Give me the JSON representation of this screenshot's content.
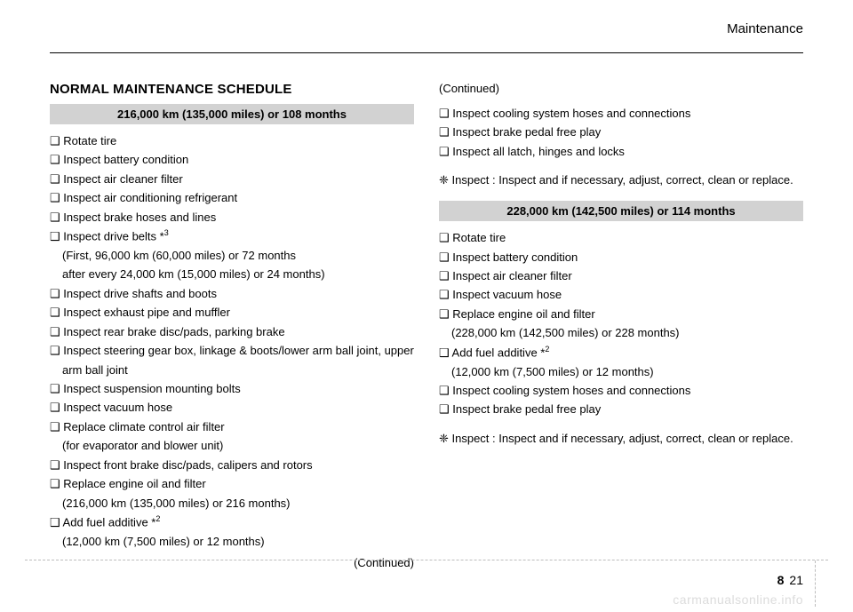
{
  "section_label": "Maintenance",
  "page_title": "NORMAL MAINTENANCE SCHEDULE",
  "continued_text": "(Continued)",
  "inspect_note": "❈ Inspect : Inspect and if necessary, adjust, correct, clean or replace.",
  "page_number_chapter": "8",
  "page_number_page": "21",
  "watermark": "carmanualsonline.info",
  "left": {
    "schedule_header": "216,000 km (135,000 miles) or 108 months",
    "items": [
      {
        "text": "❑ Rotate tire"
      },
      {
        "text": "❑ Inspect battery condition"
      },
      {
        "text": "❑ Inspect air cleaner filter"
      },
      {
        "text": "❑ Inspect air conditioning refrigerant"
      },
      {
        "text": "❑ Inspect brake hoses and lines"
      },
      {
        "text": "❑ Inspect drive belts *",
        "sup": "3"
      },
      {
        "text": "(First, 96,000 km (60,000 miles) or 72 months",
        "sub": true
      },
      {
        "text": " after every 24,000 km (15,000 miles) or 24 months)",
        "sub": true
      },
      {
        "text": "❑ Inspect drive shafts and boots"
      },
      {
        "text": "❑ Inspect exhaust pipe and muffler"
      },
      {
        "text": "❑ Inspect rear brake disc/pads, parking brake"
      },
      {
        "text": "❑ Inspect steering gear box, linkage & boots/lower arm ball joint, upper arm ball joint"
      },
      {
        "text": "❑ Inspect suspension mounting bolts"
      },
      {
        "text": "❑ Inspect vacuum hose"
      },
      {
        "text": "❑ Replace climate control air filter"
      },
      {
        "text": "(for evaporator and blower unit)",
        "sub": true
      },
      {
        "text": "❑ Inspect front brake disc/pads, calipers and rotors"
      },
      {
        "text": "❑ Replace engine oil and filter"
      },
      {
        "text": "(216,000 km (135,000 miles) or 216 months)",
        "sub": true
      },
      {
        "text": "❑ Add fuel additive *",
        "sup": "2"
      },
      {
        "text": "(12,000 km (7,500 miles) or 12 months)",
        "sub": true
      }
    ]
  },
  "right": {
    "continued_items": [
      {
        "text": "❑ Inspect cooling system hoses and connections"
      },
      {
        "text": "❑ Inspect brake pedal free play"
      },
      {
        "text": "❑ Inspect all latch, hinges and locks"
      }
    ],
    "schedule_header": "228,000 km (142,500 miles) or 114 months",
    "items": [
      {
        "text": "❑ Rotate tire"
      },
      {
        "text": "❑ Inspect battery condition"
      },
      {
        "text": "❑ Inspect air cleaner filter"
      },
      {
        "text": "❑ Inspect vacuum hose"
      },
      {
        "text": "❑ Replace engine oil and filter"
      },
      {
        "text": "(228,000 km (142,500 miles) or 228 months)",
        "sub": true
      },
      {
        "text": "❑ Add fuel additive *",
        "sup": "2"
      },
      {
        "text": "(12,000 km (7,500 miles) or 12 months)",
        "sub": true
      },
      {
        "text": "❑ Inspect cooling system hoses and connections"
      },
      {
        "text": "❑ Inspect brake pedal free play"
      }
    ]
  }
}
